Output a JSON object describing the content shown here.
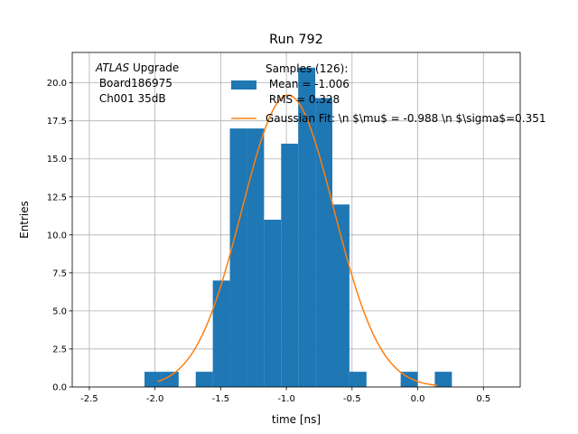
{
  "chart_data": {
    "type": "bar",
    "title": "Run 792",
    "xlabel": "time [ns]",
    "ylabel": "Entries",
    "xlim": [
      -2.63,
      0.78
    ],
    "ylim": [
      0,
      22
    ],
    "grid": true,
    "legend_position": "top-right",
    "xticks": [
      "-2.5",
      "-2.0",
      "-1.5",
      "-1.0",
      "-0.5",
      "0.0",
      "0.5"
    ],
    "xtick_values": [
      -2.5,
      -2.0,
      -1.5,
      -1.0,
      -0.5,
      0.0,
      0.5
    ],
    "yticks": [
      "0.0",
      "2.5",
      "5.0",
      "7.5",
      "10.0",
      "12.5",
      "15.0",
      "17.5",
      "20.0"
    ],
    "ytick_values": [
      0,
      2.5,
      5,
      7.5,
      10,
      12.5,
      15,
      17.5,
      20
    ],
    "histogram": {
      "bin_width": 0.13,
      "bins": [
        {
          "x0": -2.08,
          "count": 1
        },
        {
          "x0": -1.95,
          "count": 1
        },
        {
          "x0": -1.69,
          "count": 1
        },
        {
          "x0": -1.56,
          "count": 7
        },
        {
          "x0": -1.43,
          "count": 17
        },
        {
          "x0": -1.3,
          "count": 17
        },
        {
          "x0": -1.17,
          "count": 11
        },
        {
          "x0": -1.04,
          "count": 16
        },
        {
          "x0": -0.91,
          "count": 21
        },
        {
          "x0": -0.78,
          "count": 19
        },
        {
          "x0": -0.65,
          "count": 12
        },
        {
          "x0": -0.52,
          "count": 1
        },
        {
          "x0": -0.13,
          "count": 1
        },
        {
          "x0": 0.13,
          "count": 1
        }
      ],
      "color": "#1f77b4"
    },
    "gaussian_fit": {
      "mu": -0.988,
      "sigma": 0.351,
      "amplitude": 19.2,
      "x_range": [
        -1.98,
        0.15
      ],
      "color": "#ff7f0e"
    },
    "legend": {
      "samples_lines": [
        "Samples (126):",
        " Mean = -1.006",
        " RMS = 0.328"
      ],
      "gaussian_label": "Gaussian Fit: \\n $\\mu$ = -0.988 \\n $\\sigma$=0.351"
    },
    "annotation": {
      "atlas_italic": "ATLAS",
      "atlas_rest": " Upgrade",
      "board": " Board186975",
      "channel": " Ch001 35dB"
    }
  },
  "colors": {
    "bar": "#1f77b4",
    "fit": "#ff7f0e",
    "grid": "#b0b0b0"
  }
}
